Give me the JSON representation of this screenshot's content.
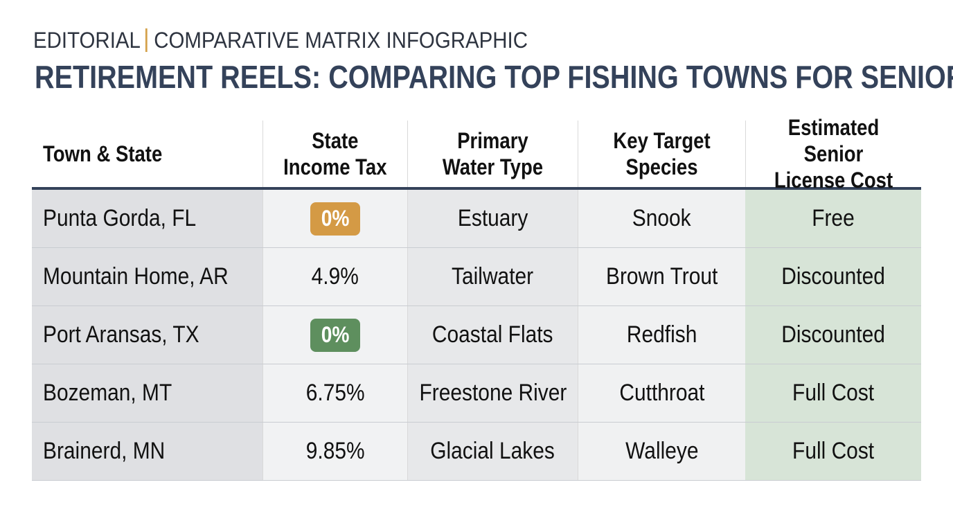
{
  "header": {
    "kicker_left": "EDITORIAL",
    "kicker_right": "COMPARATIVE MATRIX INFOGRAPHIC",
    "separator_color": "#d4a14a",
    "title": "RETIREMENT REELS: COMPARING TOP FISHING TOWNS FOR SENIORS"
  },
  "table": {
    "columns": [
      "Town & State",
      "State\nIncome Tax",
      "Primary\nWater Type",
      "Key Target\nSpecies",
      "Estimated Senior\nLicense Cost"
    ],
    "rows": [
      {
        "town": "Punta Gorda, FL",
        "tax": "0%",
        "water": "Estuary",
        "species": "Snook",
        "license": "Free"
      },
      {
        "town": "Mountain Home, AR",
        "tax": "4.9%",
        "water": "Tailwater",
        "species": "Brown Trout",
        "license": "Discounted"
      },
      {
        "town": "Port Aransas, TX",
        "tax": "0%",
        "water": "Coastal Flats",
        "species": "Redfish",
        "license": "Discounted"
      },
      {
        "town": "Bozeman, MT",
        "tax": "6.75%",
        "water": "Freestone River",
        "species": "Cutthroat",
        "license": "Full Cost"
      },
      {
        "town": "Brainerd, MN",
        "tax": "9.85%",
        "water": "Glacial Lakes",
        "species": "Walleye",
        "license": "Full Cost"
      }
    ],
    "badge_colors": {
      "gold": "#d49a45",
      "green": "#5e8f5e"
    },
    "accent_color": "#34425a",
    "license_column_color": "#d7e4d7"
  }
}
